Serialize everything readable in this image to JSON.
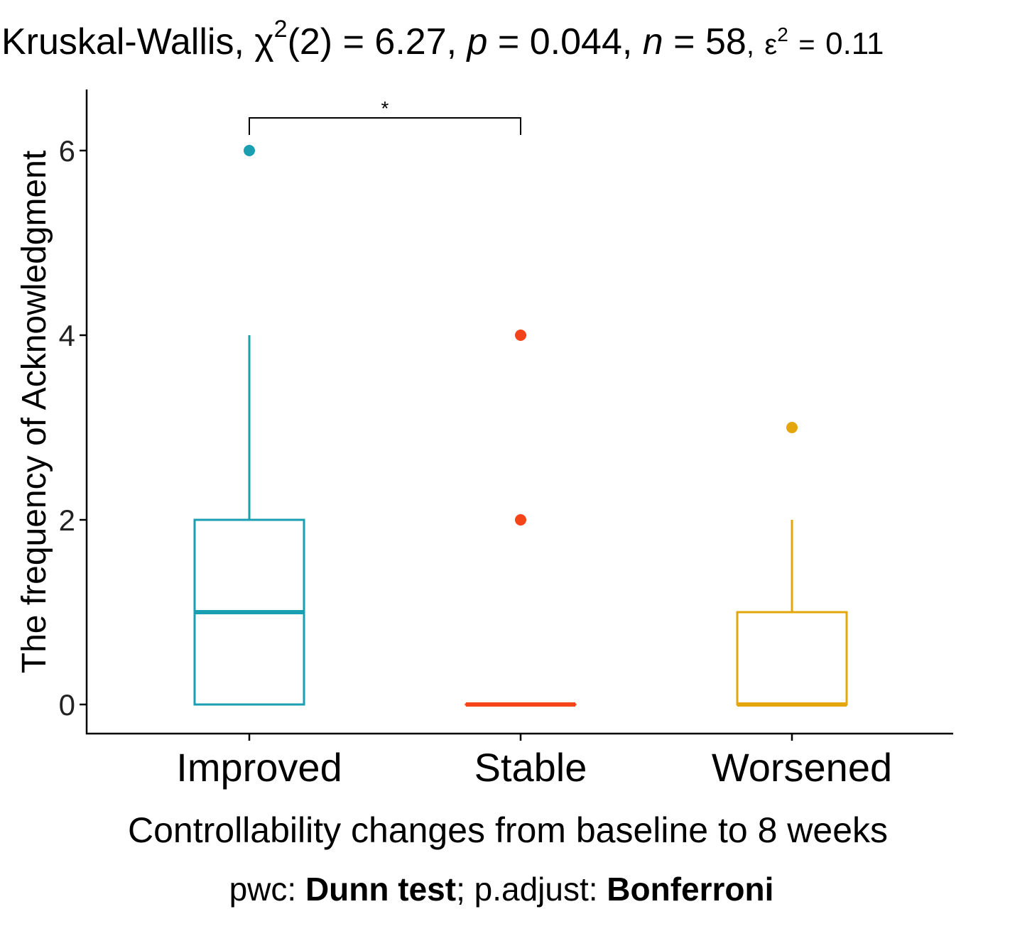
{
  "chart_data": {
    "type": "boxplot",
    "title": {
      "test": "Kruskal-Wallis",
      "stat_symbol": "χ",
      "stat_sup": "2",
      "df": "(2)",
      "statistic": "6.27",
      "p_label": "p",
      "p_value": "0.044",
      "n_label": "n",
      "n_value": "58",
      "effect_symbol": "ε",
      "effect_sup": "2",
      "effect_value": "0.11",
      "separator": ",",
      "equals": "="
    },
    "ylabel": "The frequency of Acknowledgment",
    "xlabel": "Controllability changes from baseline to 8 weeks",
    "caption": {
      "prefix": "pwc: ",
      "method": "Dunn test",
      "middle": "; p.adjust: ",
      "adjust": "Bonferroni"
    },
    "ylim": [
      -0.3,
      6.6
    ],
    "yticks": [
      0,
      2,
      4,
      6
    ],
    "categories": [
      "Improved",
      "Stable",
      "Worsened"
    ],
    "groups": [
      {
        "name": "Improved",
        "color": "#1a9fb2",
        "q1": 0,
        "median": 1,
        "q3": 2,
        "whisker_low": 0,
        "whisker_high": 4,
        "outliers": [
          6
        ]
      },
      {
        "name": "Stable",
        "color": "#f5431a",
        "q1": 0,
        "median": 0,
        "q3": 0,
        "whisker_low": 0,
        "whisker_high": 0,
        "outliers": [
          2,
          4
        ]
      },
      {
        "name": "Worsened",
        "color": "#e3a70c",
        "q1": 0,
        "median": 0,
        "q3": 1,
        "whisker_low": 0,
        "whisker_high": 2,
        "outliers": [
          3
        ]
      }
    ],
    "comparisons": [
      {
        "group1": "Improved",
        "group2": "Stable",
        "label": "*",
        "y": 6.35
      }
    ]
  }
}
